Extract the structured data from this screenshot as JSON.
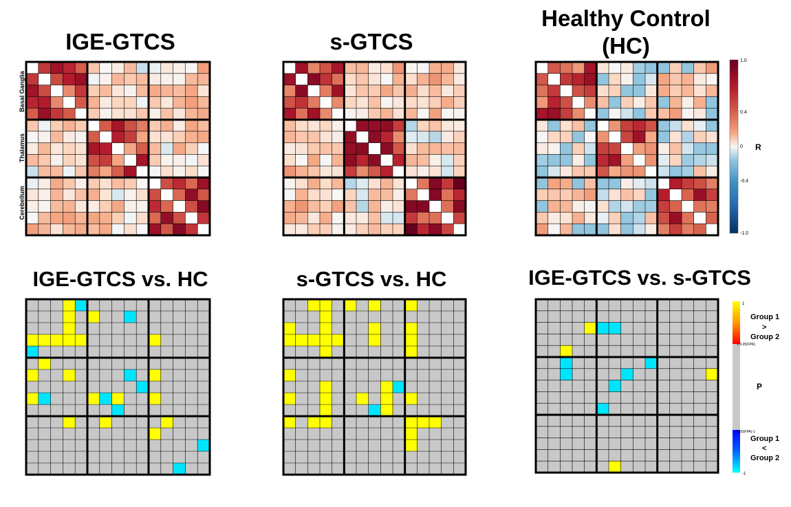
{
  "panels": {
    "a": {
      "title": "IGE-GTCS"
    },
    "b": {
      "title": "s-GTCS"
    },
    "c": {
      "title_line1": "Healthy Control",
      "title_line2": "(HC)"
    },
    "d": {
      "title": "IGE-GTCS vs. HC"
    },
    "e": {
      "title": "s-GTCS vs. HC"
    },
    "f": {
      "title": "IGE-GTCS vs. s-GTCS"
    }
  },
  "regions": [
    "Basal Ganglia",
    "Thalamus",
    "Cerebellum"
  ],
  "colorbar_r": {
    "label": "R",
    "ticks": [
      "1.0",
      "0.4",
      "0",
      "-0.4",
      "-1.0"
    ],
    "colors": {
      "high": "#67001f",
      "mid": "#f7f7f7",
      "low": "#053061"
    }
  },
  "colorbar_p": {
    "top_tick": "1",
    "upper_thresh": "1-0.05(FPA)",
    "lower_thresh": "0.05(FPA)-1",
    "bottom_tick": "-1",
    "label_p": "P",
    "upper_label": [
      "Group 1",
      ">",
      "Group 2"
    ],
    "lower_label": [
      "Group 1",
      "<",
      "Group 2"
    ],
    "colors": {
      "pos": "#ffff00",
      "neg": "#00e5ff",
      "null": "#c8c8c8"
    }
  },
  "chart_data": [
    {
      "type": "heatmap",
      "title": "IGE-GTCS",
      "grid_size": 15,
      "block_size": 5,
      "value_range": [
        -1,
        1
      ],
      "blocks": [
        "Basal Ganglia",
        "Thalamus",
        "Cerebellum"
      ],
      "block_mean_r": [
        [
          0.65,
          0.12,
          0.18
        ],
        [
          0.12,
          0.6,
          0.15
        ],
        [
          0.18,
          0.15,
          0.75
        ]
      ]
    },
    {
      "type": "heatmap",
      "title": "s-GTCS",
      "grid_size": 15,
      "block_size": 5,
      "value_range": [
        -1,
        1
      ],
      "blocks": [
        "Basal Ganglia",
        "Thalamus",
        "Cerebellum"
      ],
      "block_mean_r": [
        [
          0.7,
          0.2,
          0.2
        ],
        [
          0.2,
          0.65,
          0.1
        ],
        [
          0.2,
          0.1,
          0.75
        ]
      ]
    },
    {
      "type": "heatmap",
      "title": "Healthy Control (HC)",
      "grid_size": 15,
      "block_size": 5,
      "value_range": [
        -1,
        1
      ],
      "blocks": [
        "Basal Ganglia",
        "Thalamus",
        "Cerebellum"
      ],
      "block_mean_r": [
        [
          0.65,
          0.05,
          0.2
        ],
        [
          0.05,
          0.6,
          0.05
        ],
        [
          0.2,
          0.05,
          0.7
        ]
      ]
    },
    {
      "type": "heatmap",
      "title": "IGE-GTCS vs. HC",
      "grid_size": 15,
      "block_size": 5,
      "value_range": [
        -1,
        1
      ],
      "significant_cells": [
        {
          "row": 0,
          "col": 3,
          "sign": 1
        },
        {
          "row": 0,
          "col": 4,
          "sign": -1
        },
        {
          "row": 1,
          "col": 3,
          "sign": 1
        },
        {
          "row": 1,
          "col": 5,
          "sign": 1
        },
        {
          "row": 1,
          "col": 8,
          "sign": -1
        },
        {
          "row": 2,
          "col": 3,
          "sign": 1
        },
        {
          "row": 3,
          "col": 0,
          "sign": 1
        },
        {
          "row": 3,
          "col": 1,
          "sign": 1
        },
        {
          "row": 3,
          "col": 2,
          "sign": 1
        },
        {
          "row": 3,
          "col": 3,
          "sign": 1
        },
        {
          "row": 3,
          "col": 4,
          "sign": 1
        },
        {
          "row": 3,
          "col": 10,
          "sign": 1
        },
        {
          "row": 4,
          "col": 0,
          "sign": -1
        },
        {
          "row": 5,
          "col": 1,
          "sign": 1
        },
        {
          "row": 6,
          "col": 0,
          "sign": 1
        },
        {
          "row": 6,
          "col": 3,
          "sign": 1
        },
        {
          "row": 6,
          "col": 8,
          "sign": -1
        },
        {
          "row": 6,
          "col": 10,
          "sign": 1
        },
        {
          "row": 7,
          "col": 9,
          "sign": -1
        },
        {
          "row": 8,
          "col": 0,
          "sign": 1
        },
        {
          "row": 8,
          "col": 1,
          "sign": -1
        },
        {
          "row": 8,
          "col": 5,
          "sign": 1
        },
        {
          "row": 8,
          "col": 6,
          "sign": -1
        },
        {
          "row": 8,
          "col": 7,
          "sign": 1
        },
        {
          "row": 8,
          "col": 10,
          "sign": 1
        },
        {
          "row": 9,
          "col": 7,
          "sign": -1
        },
        {
          "row": 10,
          "col": 3,
          "sign": 1
        },
        {
          "row": 10,
          "col": 6,
          "sign": 1
        },
        {
          "row": 10,
          "col": 11,
          "sign": 1
        },
        {
          "row": 11,
          "col": 10,
          "sign": 1
        },
        {
          "row": 12,
          "col": 14,
          "sign": -1
        },
        {
          "row": 14,
          "col": 12,
          "sign": -1
        }
      ]
    },
    {
      "type": "heatmap",
      "title": "s-GTCS vs. HC",
      "grid_size": 15,
      "block_size": 5,
      "value_range": [
        -1,
        1
      ],
      "significant_cells": [
        {
          "row": 0,
          "col": 2,
          "sign": 1
        },
        {
          "row": 0,
          "col": 3,
          "sign": 1
        },
        {
          "row": 0,
          "col": 5,
          "sign": 1
        },
        {
          "row": 0,
          "col": 7,
          "sign": 1
        },
        {
          "row": 0,
          "col": 10,
          "sign": 1
        },
        {
          "row": 1,
          "col": 3,
          "sign": 1
        },
        {
          "row": 2,
          "col": 0,
          "sign": 1
        },
        {
          "row": 2,
          "col": 3,
          "sign": 1
        },
        {
          "row": 2,
          "col": 7,
          "sign": 1
        },
        {
          "row": 2,
          "col": 10,
          "sign": 1
        },
        {
          "row": 3,
          "col": 0,
          "sign": 1
        },
        {
          "row": 3,
          "col": 1,
          "sign": 1
        },
        {
          "row": 3,
          "col": 2,
          "sign": 1
        },
        {
          "row": 3,
          "col": 3,
          "sign": 1
        },
        {
          "row": 3,
          "col": 4,
          "sign": 1
        },
        {
          "row": 3,
          "col": 7,
          "sign": 1
        },
        {
          "row": 3,
          "col": 10,
          "sign": 1
        },
        {
          "row": 4,
          "col": 3,
          "sign": 1
        },
        {
          "row": 4,
          "col": 10,
          "sign": 1
        },
        {
          "row": 6,
          "col": 0,
          "sign": 1
        },
        {
          "row": 7,
          "col": 3,
          "sign": 1
        },
        {
          "row": 7,
          "col": 8,
          "sign": 1
        },
        {
          "row": 7,
          "col": 9,
          "sign": -1
        },
        {
          "row": 8,
          "col": 0,
          "sign": 1
        },
        {
          "row": 8,
          "col": 3,
          "sign": 1
        },
        {
          "row": 8,
          "col": 6,
          "sign": 1
        },
        {
          "row": 8,
          "col": 8,
          "sign": 1
        },
        {
          "row": 8,
          "col": 10,
          "sign": 1
        },
        {
          "row": 9,
          "col": 3,
          "sign": 1
        },
        {
          "row": 9,
          "col": 7,
          "sign": -1
        },
        {
          "row": 9,
          "col": 8,
          "sign": 1
        },
        {
          "row": 10,
          "col": 0,
          "sign": 1
        },
        {
          "row": 10,
          "col": 2,
          "sign": 1
        },
        {
          "row": 10,
          "col": 3,
          "sign": 1
        },
        {
          "row": 10,
          "col": 10,
          "sign": 1
        },
        {
          "row": 10,
          "col": 11,
          "sign": 1
        },
        {
          "row": 10,
          "col": 12,
          "sign": 1
        },
        {
          "row": 11,
          "col": 10,
          "sign": 1
        },
        {
          "row": 12,
          "col": 10,
          "sign": 1
        }
      ]
    },
    {
      "type": "heatmap",
      "title": "IGE-GTCS vs. s-GTCS",
      "grid_size": 15,
      "block_size": 5,
      "value_range": [
        -1,
        1
      ],
      "significant_cells": [
        {
          "row": 2,
          "col": 4,
          "sign": 1
        },
        {
          "row": 2,
          "col": 5,
          "sign": -1
        },
        {
          "row": 2,
          "col": 6,
          "sign": -1
        },
        {
          "row": 4,
          "col": 2,
          "sign": 1
        },
        {
          "row": 5,
          "col": 2,
          "sign": -1
        },
        {
          "row": 5,
          "col": 9,
          "sign": -1
        },
        {
          "row": 6,
          "col": 2,
          "sign": -1
        },
        {
          "row": 6,
          "col": 7,
          "sign": -1
        },
        {
          "row": 6,
          "col": 14,
          "sign": 1
        },
        {
          "row": 7,
          "col": 6,
          "sign": -1
        },
        {
          "row": 9,
          "col": 5,
          "sign": -1
        },
        {
          "row": 14,
          "col": 6,
          "sign": 1
        }
      ]
    }
  ]
}
